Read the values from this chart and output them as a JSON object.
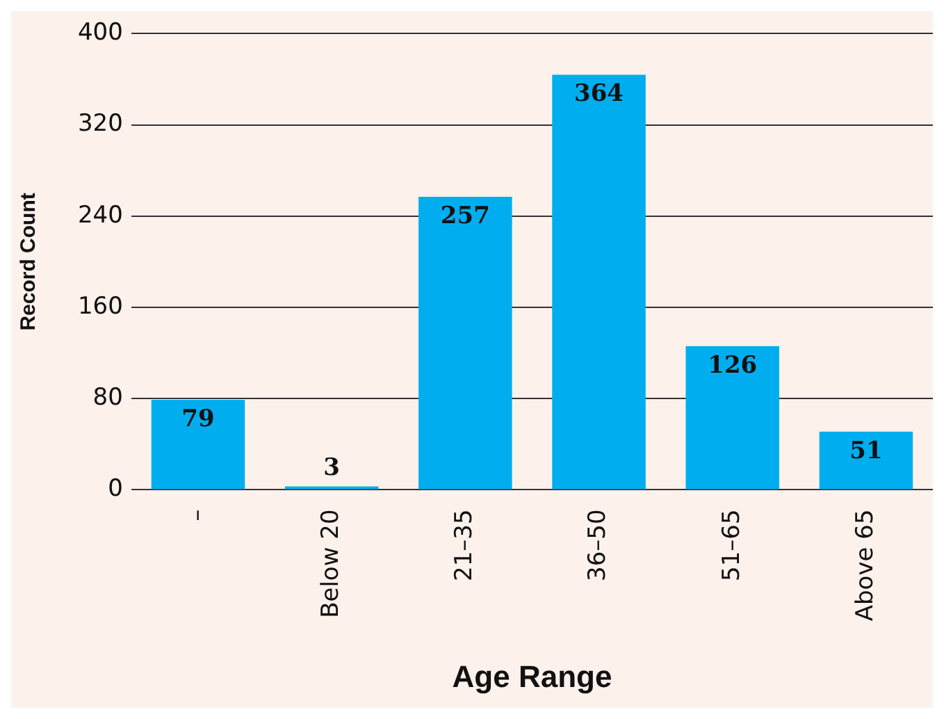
{
  "chart_data": {
    "type": "bar",
    "xlabel": "Age Range",
    "ylabel": "Record Count",
    "categories": [
      "–",
      "Below 20",
      "21–35",
      "36–50",
      "51–65",
      "Above 65"
    ],
    "values": [
      79,
      3,
      257,
      364,
      126,
      51
    ],
    "color": "#00aeef",
    "ylim": [
      0,
      400
    ],
    "yticks": [
      0,
      80,
      160,
      240,
      320,
      400
    ],
    "grid": "y",
    "legend": false,
    "data_labels": true
  }
}
